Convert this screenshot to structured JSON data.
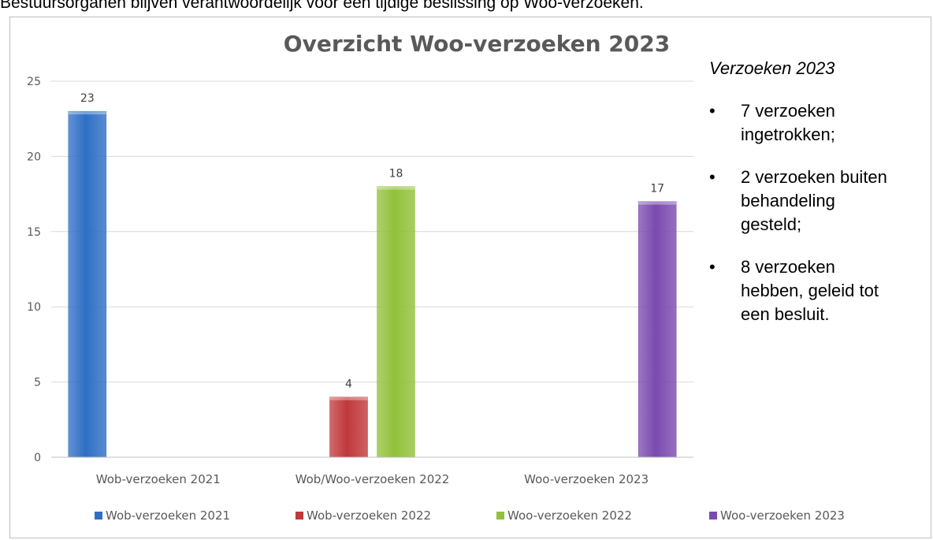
{
  "intro_text": "Bestuursorganen blijven verantwoordelijk voor een tijdige beslissing op Woo-verzoeken.",
  "colors": {
    "Wob-verzoeken 2021": "#2e6fc4",
    "Wob-verzoeken 2022": "#c0393b",
    "Woo-verzoeken 2022": "#92c13a",
    "Woo-verzoeken 2023": "#7a4bae"
  },
  "side_panel": {
    "heading": "Verzoeken 2023",
    "items": [
      {
        "bullet": "•",
        "text": "7 verzoeken ingetrokken;"
      },
      {
        "bullet": "•",
        "text": "2 verzoeken buiten behandeling gesteld;"
      },
      {
        "bullet": "•",
        "text": "8 verzoeken hebben, geleid tot een besluit."
      }
    ]
  },
  "chart_data": {
    "type": "bar",
    "title": "Overzicht Woo-verzoeken 2023",
    "xlabel": "",
    "ylabel": "",
    "categories": [
      "Wob-verzoeken 2021",
      "Wob/Woo-verzoeken 2022",
      "Woo-verzoeken 2023"
    ],
    "ylim": [
      0,
      25
    ],
    "yticks": [
      0,
      5,
      10,
      15,
      20,
      25
    ],
    "grid": true,
    "legend_position": "bottom",
    "series": [
      {
        "name": "Wob-verzoeken 2021",
        "values": [
          23,
          null,
          null
        ]
      },
      {
        "name": "Wob-verzoeken 2022",
        "values": [
          null,
          4,
          null
        ]
      },
      {
        "name": "Woo-verzoeken 2022",
        "values": [
          null,
          18,
          null
        ]
      },
      {
        "name": "Woo-verzoeken 2023",
        "values": [
          null,
          null,
          17
        ]
      }
    ]
  }
}
